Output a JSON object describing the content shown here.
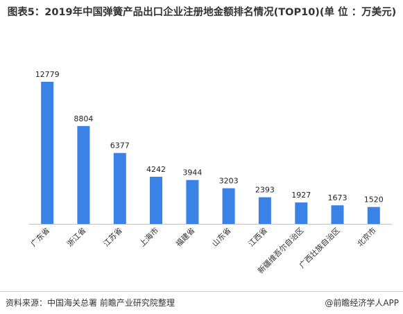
{
  "title": "图表5：2019年中国弹簧产品出口企业注册地金额排名情况(TOP10)(单 位 ：万美元)",
  "footer": {
    "source": "资料来源：中国海关总署 前瞻产业研究院整理",
    "credit": "@前瞻经济学人APP"
  },
  "colors": {
    "bar": "#3b82e6",
    "axis": "#bfbfbf"
  },
  "chart_data": {
    "type": "bar",
    "title": "图表5：2019年中国弹簧产品出口企业注册地金额排名情况(TOP10)(单 位 ：万美元)",
    "categories": [
      "广东省",
      "浙江省",
      "江苏省",
      "上海市",
      "福建省",
      "山东省",
      "江西省",
      "新疆维吾尔自治区",
      "广西壮族自治区",
      "北京市"
    ],
    "values": [
      12779,
      8804,
      6377,
      4242,
      3944,
      3203,
      2393,
      1927,
      1673,
      1520
    ],
    "xlabel": "",
    "ylabel": "",
    "ylim": [
      0,
      12779
    ],
    "grid": false,
    "legend": "none"
  }
}
